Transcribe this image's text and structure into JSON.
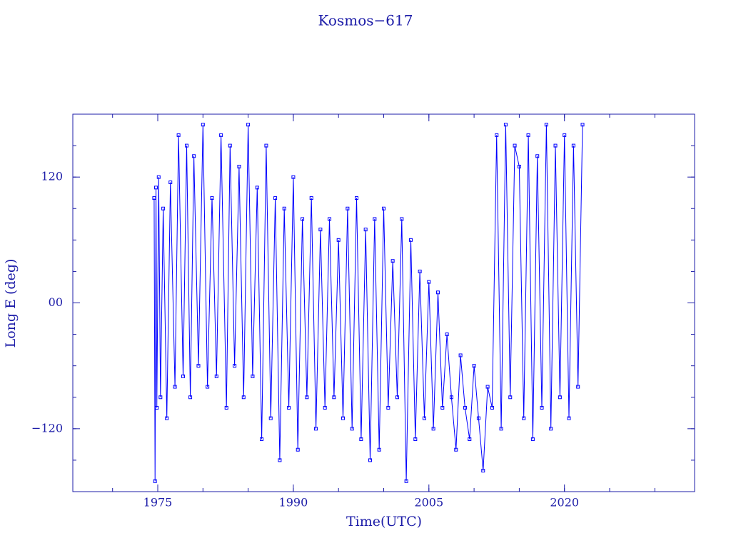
{
  "chart_data": {
    "type": "line",
    "title": "Kosmos−617",
    "xlabel": "Time(UTC)",
    "ylabel": "Long E (deg)",
    "xlim": [
      1965.6,
      2034.4
    ],
    "ylim": [
      -180,
      180
    ],
    "xticks": [
      1975,
      1990,
      2005,
      2020
    ],
    "yticks": [
      {
        "value": -120,
        "label": "−120"
      },
      {
        "value": 0,
        "label": "00"
      },
      120
    ],
    "xminor": [
      1970,
      1975,
      1980,
      1985,
      1990,
      1995,
      2000,
      2005,
      2010,
      2015,
      2020,
      2025,
      2030
    ],
    "yminor": [
      -150,
      -120,
      -90,
      -60,
      -30,
      0,
      30,
      60,
      90,
      120,
      150
    ],
    "markers": true,
    "series": [
      {
        "color": "#0000ff",
        "x": [
          1974.6,
          1974.7,
          1974.8,
          1974.9,
          1975.1,
          1975.3,
          1975.6,
          1976.0,
          1976.4,
          1976.9,
          1977.3,
          1977.8,
          1978.2,
          1978.6,
          1979.0,
          1979.5,
          1980.0,
          1980.5,
          1981.0,
          1981.5,
          1982.0,
          1982.6,
          1983.0,
          1983.5,
          1984.0,
          1984.5,
          1985.0,
          1985.5,
          1986.0,
          1986.5,
          1987.0,
          1987.5,
          1988.0,
          1988.5,
          1989.0,
          1989.5,
          1990.0,
          1990.5,
          1991.0,
          1991.5,
          1992.0,
          1992.5,
          1993.0,
          1993.5,
          1994.0,
          1994.5,
          1995.0,
          1995.5,
          1996.0,
          1996.5,
          1997.0,
          1997.5,
          1998.0,
          1998.5,
          1999.0,
          1999.5,
          2000.0,
          2000.5,
          2001.0,
          2001.5,
          2002.0,
          2002.5,
          2003.0,
          2003.5,
          2004.0,
          2004.5,
          2005.0,
          2005.5,
          2006.0,
          2006.5,
          2007.0,
          2007.5,
          2008.0,
          2008.5,
          2009.0,
          2009.5,
          2010.0,
          2010.5,
          2011.0,
          2011.5,
          2012.0,
          2012.5,
          2013.0,
          2013.5,
          2014.0,
          2014.5,
          2015.0,
          2015.5,
          2016.0,
          2016.5,
          2017.0,
          2017.5,
          2018.0,
          2018.5,
          2019.0,
          2019.5,
          2020.0,
          2020.5,
          2021.0,
          2021.5,
          2022.0
        ],
        "y": [
          100,
          -170,
          110,
          -100,
          120,
          -90,
          90,
          -110,
          115,
          -80,
          160,
          -70,
          150,
          -90,
          140,
          -60,
          170,
          -80,
          100,
          -70,
          160,
          -100,
          150,
          -60,
          130,
          -90,
          170,
          -70,
          110,
          -130,
          150,
          -110,
          100,
          -150,
          90,
          -100,
          120,
          -140,
          80,
          -90,
          100,
          -120,
          70,
          -100,
          80,
          -90,
          60,
          -110,
          90,
          -120,
          100,
          -130,
          70,
          -150,
          80,
          -140,
          90,
          -100,
          40,
          -90,
          80,
          -170,
          60,
          -130,
          30,
          -110,
          20,
          -120,
          10,
          -100,
          -30,
          -90,
          -140,
          -50,
          -100,
          -130,
          -60,
          -110,
          -160,
          -80,
          -100,
          160,
          -120,
          170,
          -90,
          150,
          130,
          -110,
          160,
          -130,
          140,
          -100,
          170,
          -120,
          150,
          -90,
          160,
          -110,
          150,
          -80,
          170
        ]
      }
    ]
  }
}
